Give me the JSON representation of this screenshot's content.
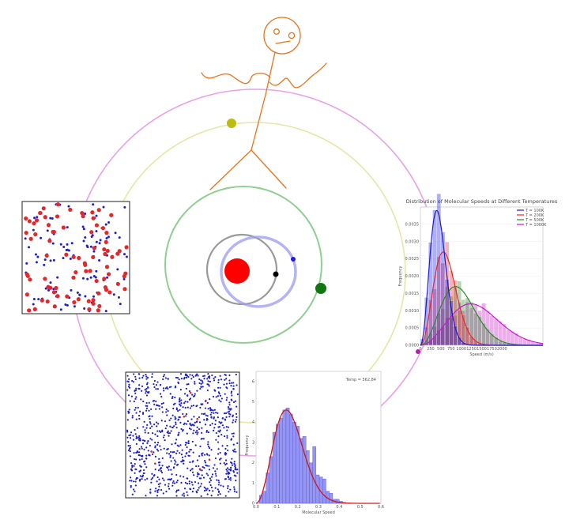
{
  "colors": {
    "sun": "#ff0000",
    "orbit_inner": "#9a9a9a",
    "orbit_blue": "#8f8ff0",
    "orbit_green": "#8fcf8f",
    "orbit_yellow": "#e6e6a6",
    "orbit_magenta": "#e9a1e9",
    "stick": "#e8741c",
    "particle_blue": "#1f1fd0",
    "particle_red": "#e8262a"
  },
  "planets": [
    "black",
    "blue",
    "green",
    "olive",
    "purple"
  ],
  "stick_figure": {
    "icon": "stick-figure"
  },
  "particle_box": {
    "red_count": 85,
    "blue_count": 110
  },
  "dense_box": {
    "blue_count": 900,
    "red_count": 8
  },
  "chart_data": [
    {
      "type": "bar",
      "title": "Distribution of Molecular Speeds at Different Temperatures",
      "xlabel": "Speed (m/s)",
      "ylabel": "Frequency",
      "xlim": [
        0,
        3000
      ],
      "ylim": [
        0,
        0.004
      ],
      "xticks": [
        "0",
        "250",
        "500",
        "750",
        "1000",
        "1250",
        "1500",
        "1750",
        "2000"
      ],
      "yticks": [
        "0.0000",
        "0.0005",
        "0.0010",
        "0.0015",
        "0.0020",
        "0.0025",
        "0.0030",
        "0.0035"
      ],
      "series": [
        {
          "name": "T = 100K",
          "color": "#1a1add",
          "peak": 400,
          "peak_value": 0.0039
        },
        {
          "name": "T = 200K",
          "color": "#e8262a",
          "peak": 560,
          "peak_value": 0.0027
        },
        {
          "name": "T = 500K",
          "color": "#2a8a2a",
          "peak": 860,
          "peak_value": 0.0017
        },
        {
          "name": "T = 1000K",
          "color": "#c81ac8",
          "peak": 1230,
          "peak_value": 0.0012
        }
      ]
    },
    {
      "type": "bar",
      "title": "Temp = 562.84",
      "xlabel": "Molecular Speed",
      "ylabel": "Frequency",
      "xlim": [
        0,
        0.6
      ],
      "ylim": [
        0,
        6.5
      ],
      "xticks": [
        "0.0",
        "0.1",
        "0.2",
        "0.3",
        "0.4",
        "0.5",
        "0.6"
      ],
      "yticks": [
        "0",
        "1",
        "2",
        "3",
        "4",
        "5",
        "6"
      ],
      "categories": [
        0.0,
        0.016,
        0.032,
        0.048,
        0.064,
        0.08,
        0.096,
        0.112,
        0.128,
        0.144,
        0.16,
        0.176,
        0.192,
        0.208,
        0.224,
        0.24,
        0.256,
        0.272,
        0.288,
        0.304,
        0.32,
        0.336,
        0.352,
        0.368,
        0.384,
        0.4,
        0.416
      ],
      "values": [
        0.0,
        0.4,
        0.6,
        1.5,
        2.3,
        3.5,
        3.9,
        4.2,
        4.6,
        4.7,
        4.4,
        4.0,
        3.8,
        3.2,
        3.3,
        2.6,
        2.0,
        2.8,
        1.4,
        1.3,
        1.2,
        0.6,
        0.5,
        0.2,
        0.2,
        0.1,
        0.05
      ]
    }
  ]
}
